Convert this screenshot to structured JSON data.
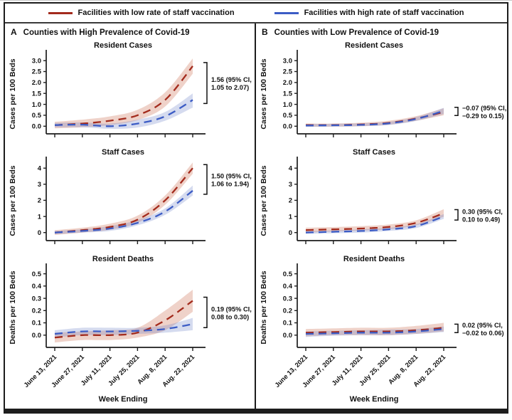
{
  "figure": {
    "legend": [
      {
        "name": "low-vaccination-facilities",
        "label": "Facilities with low rate of staff vaccination",
        "color": "#a32b1d"
      },
      {
        "name": "high-vaccination-facilities",
        "label": "Facilities with high rate of staff vaccination",
        "color": "#3c5cc5"
      }
    ]
  },
  "chart_data": {
    "type": "line",
    "x_tick_labels": [
      "June 13, 2021",
      "June 27, 2021",
      "July 11, 2021",
      "July 25, 2021",
      "Aug. 8, 2021",
      "Aug. 22, 2021"
    ],
    "xlabel": "Week Ending",
    "series_colors": {
      "low": "#a32b1d",
      "high": "#3c5cc5"
    },
    "band_colors": {
      "low": "rgba(198,92,62,0.28)",
      "high": "rgba(104,124,198,0.28)"
    },
    "legend_note": "low = facilities with low rate of staff vaccination (dashed dark red); high = facilities with high rate of staff vaccination (dashed blue); shaded regions are 95% confidence bands",
    "panels": [
      {
        "id": "A",
        "title": "Counties with High Prevalence of Covid-19",
        "subplots": [
          {
            "title": "Resident Cases",
            "ylabel": "Cases per 100 Beds",
            "ylim": [
              -0.35,
              3.3
            ],
            "yticks": [
              0,
              0.5,
              1.0,
              1.5,
              2.0,
              2.5,
              3.0
            ],
            "ytick_labels": [
              "0.0",
              "0.5",
              "1.0",
              "1.5",
              "2.0",
              "2.5",
              "3.0"
            ],
            "series": [
              {
                "name": "low",
                "values": [
                  0.05,
                  0.12,
                  0.25,
                  0.5,
                  1.2,
                  2.75
                ],
                "upper": [
                  0.2,
                  0.3,
                  0.45,
                  0.75,
                  1.55,
                  3.1
                ],
                "lower": [
                  -0.1,
                  -0.05,
                  0.05,
                  0.28,
                  0.9,
                  2.4
                ]
              },
              {
                "name": "high",
                "values": [
                  0.05,
                  0.07,
                  0.0,
                  0.12,
                  0.45,
                  1.2
                ],
                "upper": [
                  0.15,
                  0.17,
                  0.12,
                  0.3,
                  0.65,
                  1.5
                ],
                "lower": [
                  -0.05,
                  -0.05,
                  -0.12,
                  -0.06,
                  0.25,
                  0.85
                ]
              }
            ],
            "annotation": {
              "line1": "1.56 (95% CI,",
              "line2": "1.05 to 2.07)"
            }
          },
          {
            "title": "Staff Cases",
            "ylabel": "Cases per 100 Beds",
            "ylim": [
              -0.5,
              4.45
            ],
            "yticks": [
              0,
              1,
              2,
              3,
              4
            ],
            "ytick_labels": [
              "0",
              "1",
              "2",
              "3",
              "4"
            ],
            "series": [
              {
                "name": "low",
                "values": [
                  0.0,
                  0.15,
                  0.35,
                  0.8,
                  2.0,
                  4.0
                ],
                "upper": [
                  0.15,
                  0.3,
                  0.55,
                  1.05,
                  2.3,
                  4.35
                ],
                "lower": [
                  -0.15,
                  0.0,
                  0.18,
                  0.6,
                  1.72,
                  3.65
                ]
              },
              {
                "name": "high",
                "values": [
                  0.0,
                  0.1,
                  0.25,
                  0.6,
                  1.3,
                  2.6
                ],
                "upper": [
                  0.1,
                  0.2,
                  0.4,
                  0.78,
                  1.5,
                  2.92
                ],
                "lower": [
                  -0.1,
                  0.0,
                  0.1,
                  0.45,
                  1.1,
                  2.3
                ]
              }
            ],
            "annotation": {
              "line1": "1.50 (95% CI,",
              "line2": "1.06 to 1.94)"
            }
          },
          {
            "title": "Resident Deaths",
            "ylabel": "Deaths per 100 Beds",
            "ylim": [
              -0.1,
              0.55
            ],
            "yticks": [
              0,
              0.1,
              0.2,
              0.3,
              0.4,
              0.5
            ],
            "ytick_labels": [
              "0.0",
              "0.1",
              "0.2",
              "0.3",
              "0.4",
              "0.5"
            ],
            "series": [
              {
                "name": "low",
                "values": [
                  -0.02,
                  0.0,
                  0.0,
                  0.02,
                  0.12,
                  0.28
                ],
                "upper": [
                  0.02,
                  0.03,
                  0.04,
                  0.06,
                  0.2,
                  0.37
                ],
                "lower": [
                  -0.06,
                  -0.04,
                  -0.04,
                  -0.02,
                  0.04,
                  0.19
                ]
              },
              {
                "name": "high",
                "values": [
                  0.01,
                  0.03,
                  0.03,
                  0.035,
                  0.05,
                  0.09
                ],
                "upper": [
                  0.04,
                  0.06,
                  0.06,
                  0.06,
                  0.08,
                  0.14
                ],
                "lower": [
                  -0.02,
                  0.0,
                  0.0,
                  0.01,
                  0.02,
                  0.04
                ]
              }
            ],
            "annotation": {
              "line1": "0.19 (95% CI,",
              "line2": "0.08 to 0.30)"
            }
          }
        ]
      },
      {
        "id": "B",
        "title": "Counties with Low Prevalence of Covid-19",
        "subplots": [
          {
            "title": "Resident Cases",
            "ylabel": "Cases per 100 Beds",
            "ylim": [
              -0.35,
              3.3
            ],
            "yticks": [
              0,
              0.5,
              1.0,
              1.5,
              2.0,
              2.5,
              3.0
            ],
            "ytick_labels": [
              "0.0",
              "0.5",
              "1.0",
              "1.5",
              "2.0",
              "2.5",
              "3.0"
            ],
            "series": [
              {
                "name": "low",
                "values": [
                  0.05,
                  0.05,
                  0.08,
                  0.15,
                  0.35,
                  0.65
                ],
                "upper": [
                  0.12,
                  0.12,
                  0.16,
                  0.25,
                  0.46,
                  0.82
                ],
                "lower": [
                  -0.02,
                  -0.02,
                  0.0,
                  0.07,
                  0.25,
                  0.5
                ]
              },
              {
                "name": "high",
                "values": [
                  0.03,
                  0.04,
                  0.06,
                  0.13,
                  0.33,
                  0.7
                ],
                "upper": [
                  0.1,
                  0.11,
                  0.13,
                  0.2,
                  0.42,
                  0.84
                ],
                "lower": [
                  -0.03,
                  -0.02,
                  0.0,
                  0.05,
                  0.24,
                  0.56
                ]
              }
            ],
            "annotation": {
              "line1": "−0.07 (95% CI,",
              "line2": "−0.29 to 0.15)"
            }
          },
          {
            "title": "Staff Cases",
            "ylabel": "Cases per 100 Beds",
            "ylim": [
              -0.5,
              4.45
            ],
            "yticks": [
              0,
              1,
              2,
              3,
              4
            ],
            "ytick_labels": [
              "0",
              "1",
              "2",
              "3",
              "4"
            ],
            "series": [
              {
                "name": "low",
                "values": [
                  0.15,
                  0.2,
                  0.25,
                  0.35,
                  0.6,
                  1.2
                ],
                "upper": [
                  0.3,
                  0.34,
                  0.4,
                  0.5,
                  0.76,
                  1.45
                ],
                "lower": [
                  0.0,
                  0.06,
                  0.12,
                  0.2,
                  0.45,
                  0.98
                ]
              },
              {
                "name": "high",
                "values": [
                  0.0,
                  0.05,
                  0.1,
                  0.2,
                  0.4,
                  1.0
                ],
                "upper": [
                  0.08,
                  0.13,
                  0.2,
                  0.3,
                  0.52,
                  1.15
                ],
                "lower": [
                  -0.08,
                  -0.04,
                  0.0,
                  0.1,
                  0.28,
                  0.85
                ]
              }
            ],
            "annotation": {
              "line1": "0.30 (95% CI,",
              "line2": "0.10 to 0.49)"
            }
          },
          {
            "title": "Resident Deaths",
            "ylabel": "Deaths per 100 Beds",
            "ylim": [
              -0.1,
              0.55
            ],
            "yticks": [
              0,
              0.1,
              0.2,
              0.3,
              0.4,
              0.5
            ],
            "ytick_labels": [
              "0.0",
              "0.1",
              "0.2",
              "0.3",
              "0.4",
              "0.5"
            ],
            "series": [
              {
                "name": "low",
                "values": [
                  0.02,
                  0.025,
                  0.03,
                  0.03,
                  0.04,
                  0.06
                ],
                "upper": [
                  0.05,
                  0.055,
                  0.06,
                  0.06,
                  0.075,
                  0.1
                ],
                "lower": [
                  -0.01,
                  0.0,
                  0.0,
                  0.0,
                  0.01,
                  0.03
                ]
              },
              {
                "name": "high",
                "values": [
                  0.01,
                  0.015,
                  0.02,
                  0.02,
                  0.03,
                  0.05
                ],
                "upper": [
                  0.03,
                  0.035,
                  0.04,
                  0.045,
                  0.05,
                  0.07
                ],
                "lower": [
                  -0.015,
                  -0.005,
                  0.0,
                  0.0,
                  0.01,
                  0.025
                ]
              }
            ],
            "annotation": {
              "line1": "0.02 (95% CI,",
              "line2": "−0.02 to 0.06)"
            }
          }
        ]
      }
    ]
  }
}
